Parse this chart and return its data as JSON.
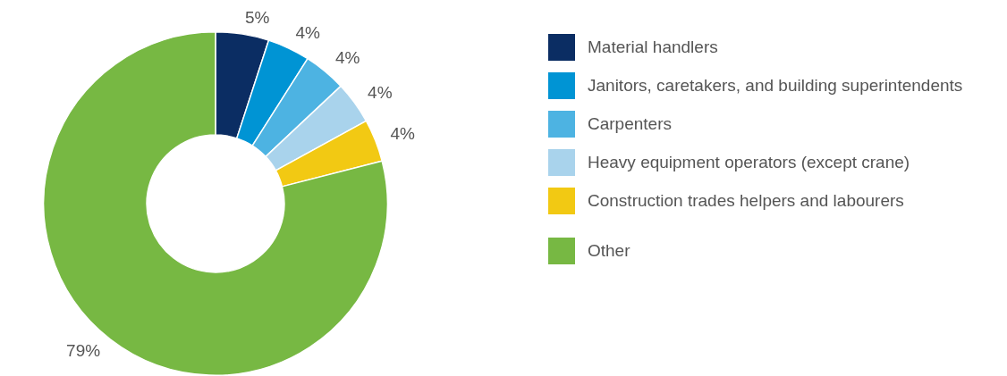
{
  "chart_data": {
    "type": "donut",
    "categories": [
      "Material handlers",
      "Janitors, caretakers, and building superintendents",
      "Carpenters",
      "Heavy equipment operators (except crane)",
      "Construction trades helpers and labourers",
      "Other"
    ],
    "values": [
      5,
      4,
      4,
      4,
      4,
      79
    ],
    "colors": [
      "#0b2d63",
      "#0094d4",
      "#4db3e2",
      "#a9d3ec",
      "#f2c913",
      "#77b843"
    ],
    "value_labels": [
      "5%",
      "4%",
      "4%",
      "4%",
      "4%",
      "79%"
    ],
    "legend": "right"
  }
}
